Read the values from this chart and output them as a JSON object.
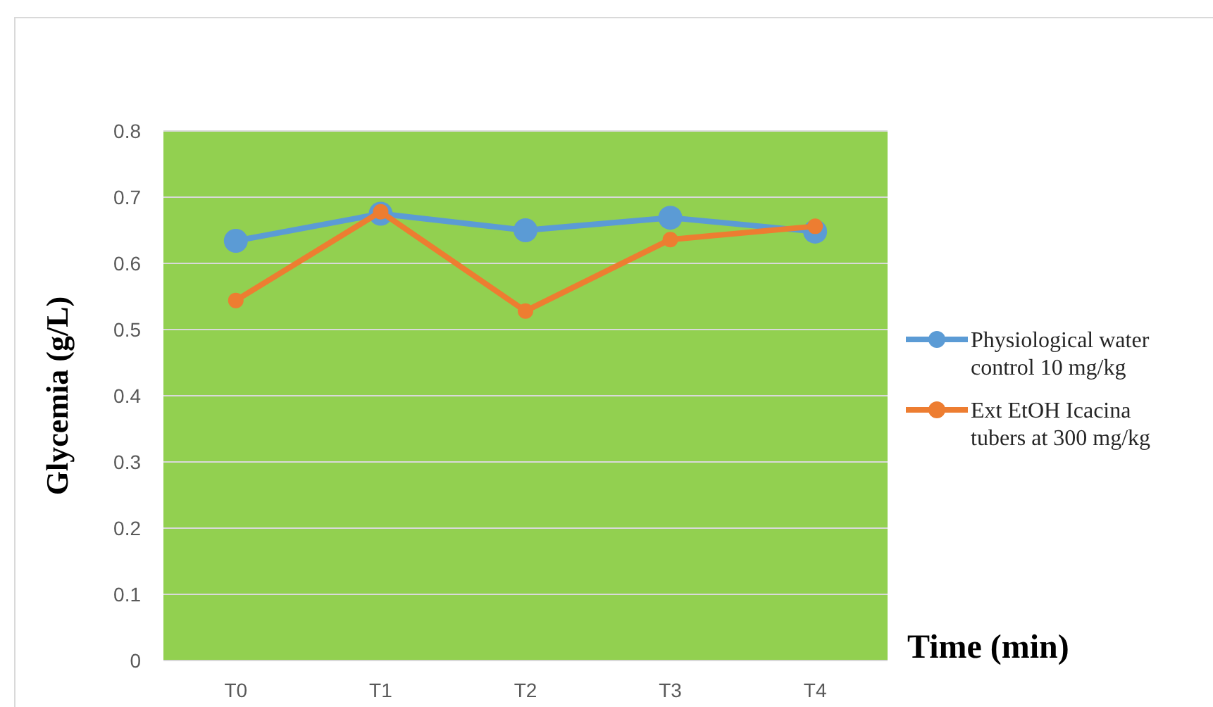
{
  "chart_data": {
    "type": "line",
    "xlabel": "Time (min)",
    "ylabel": "Glycemia (g/L)",
    "categories": [
      "T0",
      "T1",
      "T2",
      "T3",
      "T4"
    ],
    "series": [
      {
        "name": "Physiological water control 10 mg/kg",
        "color": "#5b9bd5",
        "values": [
          0.634,
          0.675,
          0.65,
          0.669,
          0.648
        ]
      },
      {
        "name": "Ext EtOH Icacina tubers at 300 mg/kg",
        "color": "#ed7d31",
        "values": [
          0.544,
          0.678,
          0.528,
          0.636,
          0.656
        ]
      }
    ],
    "ylim": [
      0,
      0.8
    ],
    "yticks": [
      0,
      0.1,
      0.2,
      0.3,
      0.4,
      0.5,
      0.6,
      0.7,
      0.8
    ],
    "grid": "y",
    "legend": "right",
    "marker": "circle",
    "line_style": "solid"
  }
}
